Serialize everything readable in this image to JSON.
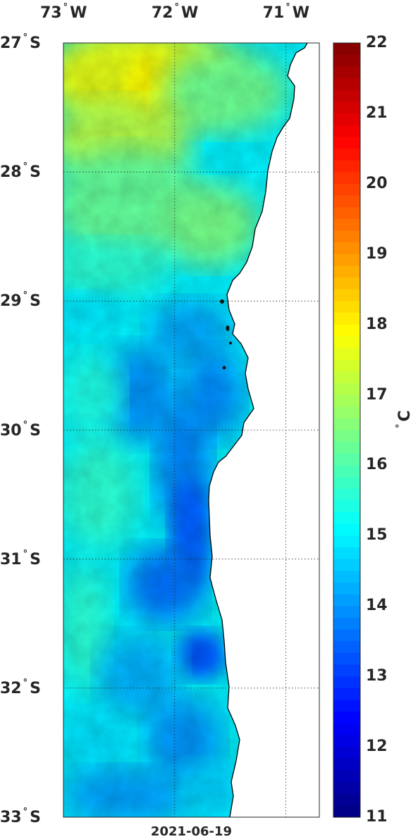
{
  "map": {
    "date": "2021-06-19",
    "lon_ticks": [
      {
        "value": -73,
        "deg": "73",
        "hem": "W"
      },
      {
        "value": -72,
        "deg": "72",
        "hem": "W"
      },
      {
        "value": -71,
        "deg": "71",
        "hem": "W"
      }
    ],
    "lat_ticks": [
      {
        "value": -27,
        "deg": "27",
        "hem": "S"
      },
      {
        "value": -28,
        "deg": "28",
        "hem": "S"
      },
      {
        "value": -29,
        "deg": "29",
        "hem": "S"
      },
      {
        "value": -30,
        "deg": "30",
        "hem": "S"
      },
      {
        "value": -31,
        "deg": "31",
        "hem": "S"
      },
      {
        "value": -32,
        "deg": "32",
        "hem": "S"
      },
      {
        "value": -33,
        "deg": "33",
        "hem": "S"
      }
    ],
    "lon_range": [
      -73,
      -70.7
    ],
    "lat_range": [
      -33,
      -27
    ],
    "grid": true,
    "colorbar": {
      "min": 11,
      "max": 22,
      "ticks": [
        "22",
        "21",
        "20",
        "19",
        "18",
        "17",
        "16",
        "15",
        "14",
        "13",
        "12",
        "11"
      ],
      "unit_deg": "°",
      "unit": "C",
      "colormap": "jet"
    },
    "land_color": "#ffffff",
    "coastline_color": "#000000"
  }
}
